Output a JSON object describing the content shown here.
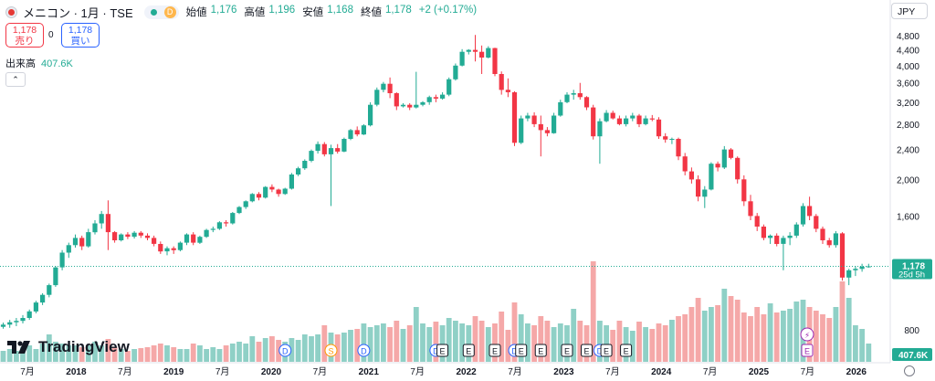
{
  "header": {
    "symbol": "メニコン · 1月 · TSE",
    "badge": "D",
    "ohlc": [
      {
        "label": "始値",
        "value": "1,176"
      },
      {
        "label": "高値",
        "value": "1,196"
      },
      {
        "label": "安値",
        "value": "1,168"
      },
      {
        "label": "終値",
        "value": "1,178"
      }
    ],
    "change": "+2 (+0.17%)"
  },
  "trade": {
    "sell_price": "1,178",
    "sell_label": "売り",
    "spread": "0",
    "buy_price": "1,178",
    "buy_label": "買い"
  },
  "volume": {
    "label": "出来高",
    "value": "407.6K"
  },
  "currency": "JPY",
  "brand": "TradingView",
  "price_label": {
    "value": "1,178",
    "countdown": "25d 5h"
  },
  "volume_label": "407.6K",
  "colors": {
    "up": "#22ab94",
    "down": "#f23645",
    "vol_up": "#8fd0c6",
    "vol_down": "#f5a8a8"
  },
  "chart_data": {
    "type": "candlestick",
    "title": "メニコン · 1月 · TSE",
    "y_axis": {
      "scale": "log",
      "ticks": [
        "800",
        "1,600",
        "2,000",
        "2,400",
        "2,800",
        "3,200",
        "3,600",
        "4,000",
        "4,400",
        "4,800"
      ],
      "tick_values": [
        800,
        1600,
        2000,
        2400,
        2800,
        3200,
        3600,
        4000,
        4400,
        4800
      ]
    },
    "x_axis": {
      "ticks": [
        "7月",
        "2018",
        "7月",
        "2019",
        "7月",
        "2020",
        "7月",
        "2021",
        "7月",
        "2022",
        "7月",
        "2023",
        "7月",
        "2024",
        "7月",
        "2025",
        "7月",
        "2026"
      ]
    },
    "candles": [
      [
        815,
        836,
        806,
        826
      ],
      [
        826,
        850,
        810,
        838
      ],
      [
        838,
        860,
        818,
        845
      ],
      [
        845,
        875,
        832,
        860
      ],
      [
        860,
        905,
        850,
        895
      ],
      [
        895,
        955,
        885,
        945
      ],
      [
        945,
        1000,
        930,
        990
      ],
      [
        990,
        1060,
        975,
        1050
      ],
      [
        1050,
        1180,
        1040,
        1170
      ],
      [
        1170,
        1300,
        1150,
        1280
      ],
      [
        1280,
        1360,
        1240,
        1340
      ],
      [
        1340,
        1430,
        1320,
        1400
      ],
      [
        1400,
        1420,
        1300,
        1330
      ],
      [
        1330,
        1480,
        1320,
        1450
      ],
      [
        1450,
        1560,
        1430,
        1530
      ],
      [
        1530,
        1650,
        1480,
        1620
      ],
      [
        1620,
        1760,
        1300,
        1450
      ],
      [
        1450,
        1460,
        1360,
        1380
      ],
      [
        1380,
        1440,
        1370,
        1430
      ],
      [
        1430,
        1450,
        1390,
        1410
      ],
      [
        1410,
        1460,
        1395,
        1445
      ],
      [
        1445,
        1460,
        1400,
        1420
      ],
      [
        1420,
        1440,
        1380,
        1400
      ],
      [
        1400,
        1420,
        1330,
        1350
      ],
      [
        1350,
        1370,
        1270,
        1290
      ],
      [
        1290,
        1330,
        1260,
        1315
      ],
      [
        1315,
        1330,
        1270,
        1300
      ],
      [
        1300,
        1370,
        1290,
        1360
      ],
      [
        1360,
        1440,
        1340,
        1430
      ],
      [
        1430,
        1450,
        1340,
        1360
      ],
      [
        1360,
        1420,
        1350,
        1410
      ],
      [
        1410,
        1480,
        1400,
        1470
      ],
      [
        1470,
        1500,
        1450,
        1480
      ],
      [
        1480,
        1550,
        1470,
        1540
      ],
      [
        1540,
        1560,
        1500,
        1530
      ],
      [
        1530,
        1640,
        1520,
        1630
      ],
      [
        1630,
        1700,
        1620,
        1690
      ],
      [
        1690,
        1760,
        1670,
        1750
      ],
      [
        1750,
        1840,
        1740,
        1830
      ],
      [
        1830,
        1850,
        1760,
        1790
      ],
      [
        1790,
        1920,
        1780,
        1910
      ],
      [
        1910,
        1940,
        1850,
        1880
      ],
      [
        1880,
        1890,
        1800,
        1830
      ],
      [
        1830,
        1900,
        1820,
        1890
      ],
      [
        1890,
        2080,
        1880,
        2060
      ],
      [
        2060,
        2160,
        2040,
        2140
      ],
      [
        2140,
        2260,
        2120,
        2240
      ],
      [
        2240,
        2400,
        2220,
        2380
      ],
      [
        2380,
        2520,
        2340,
        2480
      ],
      [
        2480,
        2510,
        2300,
        2330
      ],
      [
        2330,
        2470,
        1700,
        2420
      ],
      [
        2420,
        2480,
        2340,
        2370
      ],
      [
        2370,
        2580,
        2360,
        2560
      ],
      [
        2560,
        2720,
        2540,
        2700
      ],
      [
        2700,
        2760,
        2600,
        2630
      ],
      [
        2630,
        2800,
        2620,
        2780
      ],
      [
        2780,
        3200,
        2760,
        3150
      ],
      [
        3150,
        3500,
        3120,
        3450
      ],
      [
        3450,
        3620,
        3400,
        3580
      ],
      [
        3580,
        3720,
        3280,
        3380
      ],
      [
        3380,
        3400,
        3050,
        3120
      ],
      [
        3120,
        3180,
        3100,
        3150
      ],
      [
        3150,
        3180,
        3050,
        3100
      ],
      [
        3100,
        3850,
        3080,
        3150
      ],
      [
        3150,
        3220,
        3120,
        3200
      ],
      [
        3200,
        3330,
        3150,
        3300
      ],
      [
        3300,
        3350,
        3200,
        3270
      ],
      [
        3270,
        3400,
        3250,
        3350
      ],
      [
        3350,
        3720,
        3320,
        3680
      ],
      [
        3680,
        4050,
        3650,
        4000
      ],
      [
        4000,
        4420,
        3980,
        4350
      ],
      [
        4350,
        4420,
        4280,
        4400
      ],
      [
        4400,
        4820,
        4100,
        4350
      ],
      [
        4350,
        4520,
        3800,
        4200
      ],
      [
        4200,
        4500,
        4180,
        4450
      ],
      [
        4450,
        4460,
        3750,
        3800
      ],
      [
        3800,
        3860,
        3350,
        3450
      ],
      [
        3450,
        3700,
        3300,
        3400
      ],
      [
        3400,
        3420,
        2450,
        2500
      ],
      [
        2500,
        2950,
        2480,
        2900
      ],
      [
        2900,
        3000,
        2850,
        2950
      ],
      [
        2950,
        3010,
        2750,
        2800
      ],
      [
        2800,
        2950,
        2300,
        2700
      ],
      [
        2700,
        2750,
        2600,
        2650
      ],
      [
        2650,
        3000,
        2640,
        2950
      ],
      [
        2950,
        3250,
        2930,
        3200
      ],
      [
        3200,
        3400,
        3180,
        3350
      ],
      [
        3350,
        3450,
        3250,
        3380
      ],
      [
        3380,
        3600,
        3250,
        3300
      ],
      [
        3300,
        3320,
        3050,
        3100
      ],
      [
        3100,
        3150,
        2550,
        2600
      ],
      [
        2600,
        2900,
        2200,
        2850
      ],
      [
        2850,
        3050,
        2830,
        3000
      ],
      [
        3000,
        3040,
        2880,
        2900
      ],
      [
        2900,
        2950,
        2780,
        2800
      ],
      [
        2800,
        2950,
        2760,
        2900
      ],
      [
        2900,
        3000,
        2850,
        2950
      ],
      [
        2950,
        2980,
        2750,
        2800
      ],
      [
        2800,
        2950,
        2780,
        2900
      ],
      [
        2900,
        2960,
        2850,
        2880
      ],
      [
        2880,
        2920,
        2560,
        2600
      ],
      [
        2600,
        2650,
        2500,
        2550
      ],
      [
        2550,
        2580,
        2480,
        2560
      ],
      [
        2560,
        2580,
        2250,
        2300
      ],
      [
        2300,
        2350,
        2050,
        2100
      ],
      [
        2100,
        2150,
        1950,
        2000
      ],
      [
        2000,
        2050,
        1750,
        1800
      ],
      [
        1800,
        1920,
        1680,
        1880
      ],
      [
        1880,
        2220,
        1870,
        2200
      ],
      [
        2200,
        2230,
        2100,
        2150
      ],
      [
        2150,
        2450,
        2130,
        2400
      ],
      [
        2400,
        2420,
        2260,
        2280
      ],
      [
        2280,
        2300,
        1950,
        2000
      ],
      [
        2000,
        2050,
        1700,
        1750
      ],
      [
        1750,
        1820,
        1560,
        1600
      ],
      [
        1600,
        1630,
        1460,
        1500
      ],
      [
        1500,
        1520,
        1380,
        1400
      ],
      [
        1400,
        1430,
        1350,
        1420
      ],
      [
        1420,
        1440,
        1330,
        1350
      ],
      [
        1350,
        1420,
        1150,
        1400
      ],
      [
        1400,
        1450,
        1340,
        1420
      ],
      [
        1420,
        1540,
        1400,
        1520
      ],
      [
        1520,
        1730,
        1500,
        1700
      ],
      [
        1700,
        1800,
        1560,
        1600
      ],
      [
        1600,
        1620,
        1450,
        1480
      ],
      [
        1480,
        1500,
        1350,
        1380
      ],
      [
        1380,
        1400,
        1320,
        1340
      ],
      [
        1340,
        1460,
        1320,
        1440
      ],
      [
        1440,
        1450,
        1080,
        1100
      ],
      [
        1100,
        1160,
        1050,
        1150
      ],
      [
        1150,
        1180,
        1110,
        1160
      ],
      [
        1160,
        1196,
        1140,
        1176
      ],
      [
        1176,
        1196,
        1168,
        1178
      ]
    ],
    "volume_scale": "relative (0-100)",
    "volumes": [
      12,
      14,
      12,
      16,
      18,
      14,
      20,
      30,
      22,
      20,
      18,
      18,
      16,
      18,
      22,
      18,
      25,
      16,
      14,
      12,
      14,
      15,
      16,
      18,
      20,
      18,
      16,
      14,
      14,
      20,
      18,
      14,
      16,
      14,
      18,
      20,
      22,
      20,
      28,
      22,
      26,
      28,
      24,
      22,
      26,
      24,
      30,
      28,
      30,
      40,
      32,
      30,
      32,
      35,
      36,
      42,
      38,
      40,
      42,
      38,
      45,
      36,
      40,
      60,
      42,
      38,
      44,
      40,
      48,
      45,
      42,
      40,
      50,
      45,
      38,
      42,
      55,
      35,
      65,
      52,
      42,
      40,
      50,
      45,
      38,
      42,
      40,
      58,
      45,
      40,
      110,
      45,
      40,
      35,
      45,
      38,
      34,
      44,
      38,
      36,
      42,
      40,
      46,
      50,
      52,
      60,
      70,
      56,
      60,
      62,
      80,
      72,
      68,
      54,
      50,
      60,
      52,
      64,
      54,
      56,
      58,
      66,
      68,
      60,
      56,
      52,
      48,
      60,
      88,
      70,
      40,
      36,
      20
    ],
    "events": [
      {
        "type": "D",
        "index": 43
      },
      {
        "type": "S",
        "index": 50
      },
      {
        "type": "D",
        "index": 55
      },
      {
        "type": "D",
        "index": 66
      },
      {
        "type": "E",
        "index": 67
      },
      {
        "type": "E",
        "index": 71
      },
      {
        "type": "E",
        "index": 75
      },
      {
        "type": "D",
        "index": 78
      },
      {
        "type": "E",
        "index": 79
      },
      {
        "type": "E",
        "index": 82
      },
      {
        "type": "E",
        "index": 86
      },
      {
        "type": "E",
        "index": 89
      },
      {
        "type": "D",
        "index": 91
      },
      {
        "type": "E",
        "index": 92
      },
      {
        "type": "E",
        "index": 95
      }
    ],
    "last_price": 1178,
    "last_volume": "407.6K"
  }
}
